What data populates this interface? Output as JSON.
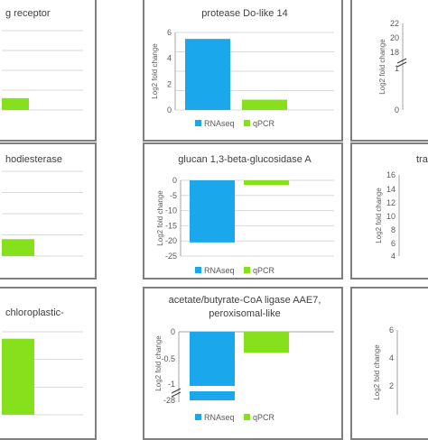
{
  "colors": {
    "rnaseq": "#1aa7ec",
    "qpcr": "#86e01c"
  },
  "legend": {
    "rnaseq": "RNAseq",
    "qpcr": "qPCR"
  },
  "ylabel": "Log2 fold change",
  "chart_data": [
    {
      "id": "p1",
      "type": "bar",
      "title": "g receptor",
      "ylabel": "",
      "categories": [
        "RNAseq",
        "qPCR"
      ],
      "values": [
        null,
        0.9
      ],
      "ylim": [
        0,
        6
      ],
      "ticks": []
    },
    {
      "id": "p2",
      "type": "bar",
      "title": "protease Do-like 14",
      "ylabel": "Log2 fold change",
      "categories": [
        "RNAseq",
        "qPCR"
      ],
      "values": [
        5.5,
        0.8
      ],
      "ylim": [
        0,
        6
      ],
      "ticks": [
        "0",
        "2",
        "4",
        "6"
      ]
    },
    {
      "id": "p3",
      "type": "bar",
      "title": "",
      "ylabel": "Log2 fold change",
      "categories": [
        "RNAseq",
        "qPCR"
      ],
      "values": [
        null,
        null
      ],
      "ylim": [
        0,
        22
      ],
      "ticks": [
        "0",
        "1",
        "18",
        "20",
        "22"
      ]
    },
    {
      "id": "p4",
      "type": "bar",
      "title": "hodiesterase",
      "ylabel": "",
      "categories": [
        "RNAseq",
        "qPCR"
      ],
      "values": [
        null,
        3.2
      ],
      "ylim": [
        0,
        16
      ],
      "ticks": []
    },
    {
      "id": "p5",
      "type": "bar",
      "title": "glucan 1,3-beta-glucosidase A",
      "ylabel": "Log2 fold change",
      "categories": [
        "RNAseq",
        "qPCR"
      ],
      "values": [
        -20.5,
        -1.5
      ],
      "ylim": [
        -25,
        0
      ],
      "ticks": [
        "0",
        "-5",
        "-10",
        "-15",
        "-20",
        "-25"
      ]
    },
    {
      "id": "p6",
      "type": "bar",
      "title": "translati",
      "ylabel": "Log2 fold change",
      "categories": [
        "RNAseq",
        "qPCR"
      ],
      "values": [
        null,
        null
      ],
      "ylim": [
        0,
        16
      ],
      "ticks": [
        "16",
        "14",
        "12",
        "10",
        "8",
        "6",
        "4"
      ]
    },
    {
      "id": "p7",
      "type": "bar",
      "title": "chloroplastic-",
      "ylabel": "",
      "categories": [
        "RNAseq",
        "qPCR"
      ],
      "values": [
        null,
        5.5
      ],
      "ylim": [
        0,
        6
      ],
      "ticks": []
    },
    {
      "id": "p8",
      "type": "bar",
      "title": "acetate/butyrate-CoA ligase AAE7,",
      "title2": "peroxisomal-like",
      "ylabel": "Log2 fold change",
      "categories": [
        "RNAseq",
        "qPCR"
      ],
      "values": [
        -27,
        -0.4
      ],
      "ylim": [
        -28,
        0
      ],
      "ticks": [
        "0",
        "-0.5",
        "-1",
        "-28"
      ],
      "broken": true
    },
    {
      "id": "p9",
      "type": "bar",
      "title": "",
      "ylabel": "Log2 fold change",
      "categories": [
        "RNAseq",
        "qPCR"
      ],
      "values": [
        null,
        null
      ],
      "ylim": [
        0,
        6
      ],
      "ticks": [
        "6",
        "4",
        "2"
      ]
    }
  ]
}
